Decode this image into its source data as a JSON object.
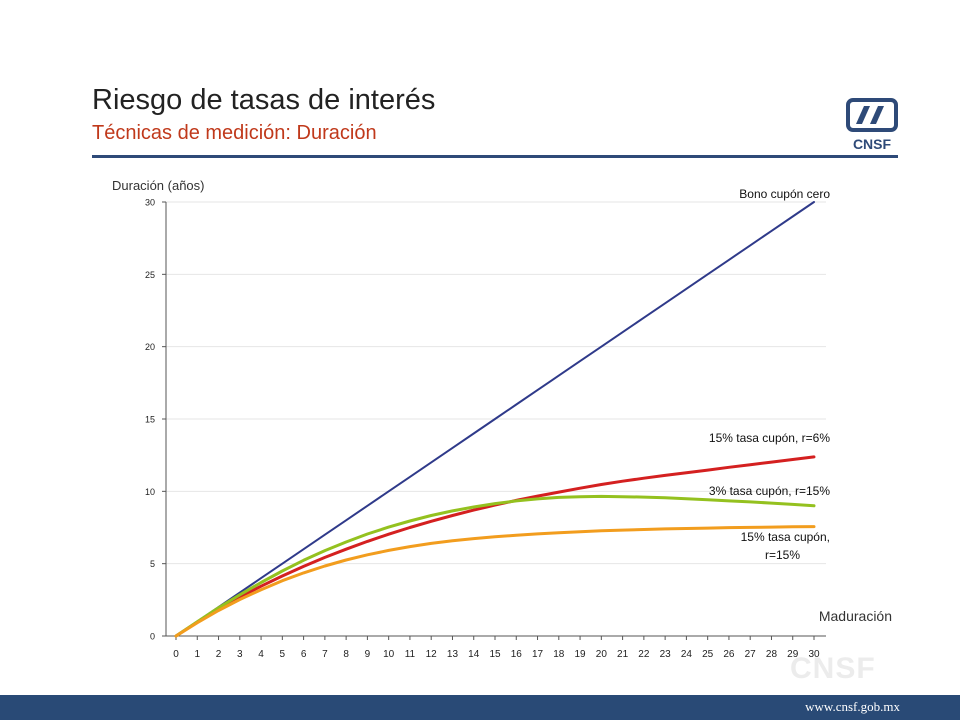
{
  "slide": {
    "title": "Riesgo de tasas de interés",
    "subtitle": "Técnicas de medición: Duración",
    "logo_text": "CNSF",
    "watermark_text": "CNSF",
    "footer_url": "www.cnsf.gob.mx",
    "colors": {
      "accent_rule": "#2e4a78",
      "subtitle": "#c0391b",
      "footer": "#294a76"
    }
  },
  "chart_data": {
    "type": "line",
    "title": "",
    "ylabel": "Duración (años)",
    "xlabel": "Maduración",
    "x": [
      0,
      1,
      2,
      3,
      4,
      5,
      6,
      7,
      8,
      9,
      10,
      11,
      12,
      13,
      14,
      15,
      16,
      17,
      18,
      19,
      20,
      21,
      22,
      23,
      24,
      25,
      26,
      27,
      28,
      29,
      30
    ],
    "xlim": [
      0,
      30
    ],
    "ylim": [
      0,
      30
    ],
    "yticks": [
      0,
      5,
      10,
      15,
      20,
      25,
      30
    ],
    "grid": true,
    "series": [
      {
        "name": "Bono cupón cero",
        "color": "#2f3a8a",
        "values": [
          0,
          1,
          2,
          3,
          4,
          5,
          6,
          7,
          8,
          9,
          10,
          11,
          12,
          13,
          14,
          15,
          16,
          17,
          18,
          19,
          20,
          21,
          22,
          23,
          24,
          25,
          26,
          27,
          28,
          29,
          30
        ]
      },
      {
        "name": "15% tasa cupón, r=6%",
        "color": "#d42020",
        "values": [
          0,
          0.96,
          1.85,
          2.68,
          3.44,
          4.15,
          4.81,
          5.43,
          6.0,
          6.54,
          7.04,
          7.5,
          7.93,
          8.33,
          8.7,
          9.05,
          9.37,
          9.67,
          9.95,
          10.22,
          10.47,
          10.7,
          10.91,
          11.1,
          11.29,
          11.47,
          11.66,
          11.84,
          12.02,
          12.2,
          12.38
        ]
      },
      {
        "name": "3% tasa cupón, r=15%",
        "color": "#94c11f",
        "values": [
          0,
          0.99,
          1.95,
          2.85,
          3.7,
          4.49,
          5.23,
          5.9,
          6.5,
          7.05,
          7.53,
          7.95,
          8.33,
          8.65,
          8.92,
          9.15,
          9.34,
          9.48,
          9.58,
          9.63,
          9.65,
          9.63,
          9.6,
          9.55,
          9.49,
          9.42,
          9.34,
          9.27,
          9.19,
          9.1,
          9.0
        ]
      },
      {
        "name": "15% tasa cupón, r=15%",
        "color": "#f29d1e",
        "values": [
          0,
          0.92,
          1.76,
          2.52,
          3.2,
          3.82,
          4.36,
          4.84,
          5.25,
          5.61,
          5.92,
          6.18,
          6.4,
          6.58,
          6.73,
          6.86,
          6.97,
          7.06,
          7.14,
          7.21,
          7.27,
          7.32,
          7.36,
          7.4,
          7.43,
          7.46,
          7.49,
          7.51,
          7.53,
          7.55,
          7.56
        ]
      }
    ],
    "annotations": [
      {
        "text": "Bono cupón cero"
      },
      {
        "text": "15% tasa cupón, r=6%"
      },
      {
        "text": "3% tasa cupón, r=15%"
      },
      {
        "text": "15% tasa cupón,",
        "text2": "r=15%"
      }
    ]
  }
}
